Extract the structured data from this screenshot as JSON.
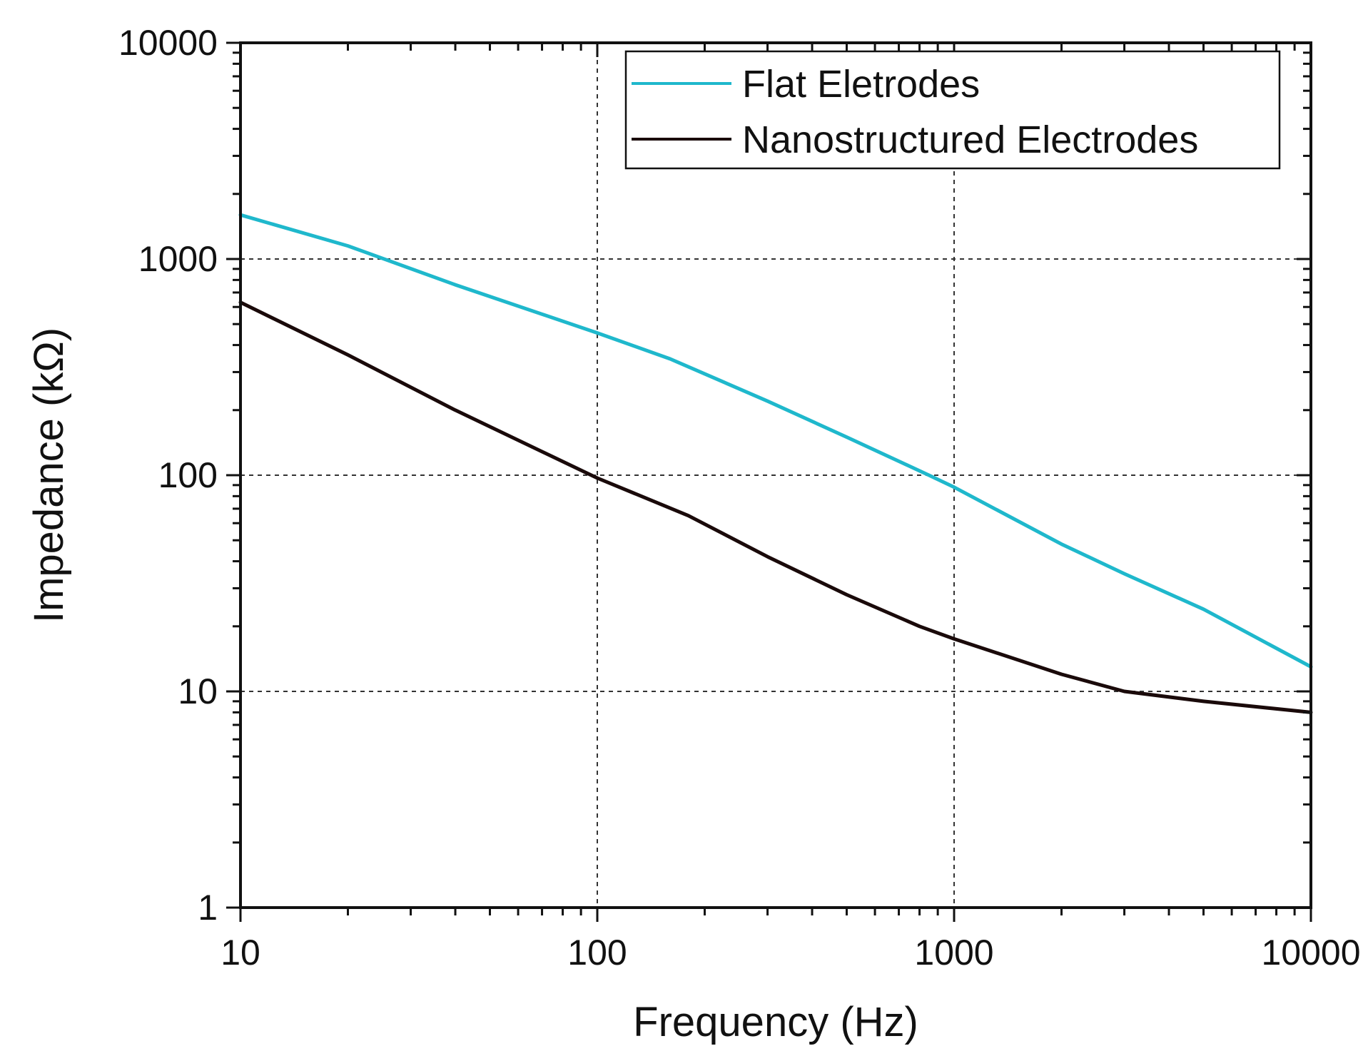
{
  "chart_data": {
    "type": "line",
    "x_scale": "log",
    "y_scale": "log",
    "xlabel": "Frequency (Hz)",
    "ylabel": "Impedance (kΩ)",
    "xlim": [
      10,
      10000
    ],
    "ylim": [
      1,
      10000
    ],
    "x_ticks": [
      10,
      100,
      1000,
      10000
    ],
    "y_ticks": [
      1,
      10,
      100,
      1000,
      10000
    ],
    "x_tick_labels": [
      "10",
      "100",
      "1000",
      "10000"
    ],
    "y_tick_labels": [
      "1",
      "10",
      "100",
      "1000",
      "10000"
    ],
    "grid": true,
    "legend_position": "top-right",
    "series": [
      {
        "name": "Flat Eletrodes",
        "color": "#1fb8cc",
        "x": [
          10,
          20,
          40,
          100,
          160,
          300,
          500,
          850,
          1000,
          2000,
          3000,
          5000,
          10000
        ],
        "y": [
          1600,
          1150,
          760,
          455,
          345,
          220,
          150,
          100,
          88,
          48,
          35,
          24,
          13
        ]
      },
      {
        "name": "Nanostructured Electrodes",
        "color": "#1a0a0a",
        "x": [
          10,
          20,
          40,
          100,
          180,
          300,
          500,
          800,
          1000,
          2000,
          3000,
          5000,
          10000
        ],
        "y": [
          630,
          360,
          200,
          97,
          65,
          42,
          28,
          20,
          17.5,
          12,
          10,
          9,
          8
        ]
      }
    ]
  }
}
